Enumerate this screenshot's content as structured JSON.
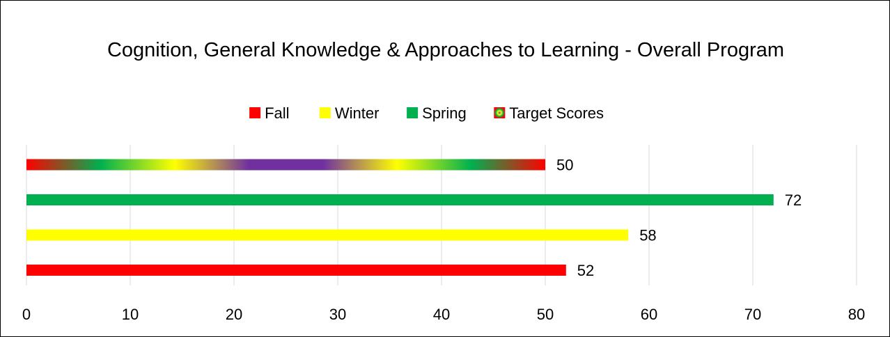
{
  "chart_data": {
    "type": "bar",
    "orientation": "horizontal",
    "title": "Cognition, General Knowledge & Approaches to Learning - Overall Program",
    "series": [
      {
        "name": "Fall",
        "color": "#ff0000",
        "values": [
          52
        ]
      },
      {
        "name": "Winter",
        "color": "#ffff00",
        "values": [
          58
        ]
      },
      {
        "name": "Spring",
        "color": "#00b050",
        "values": [
          72
        ]
      },
      {
        "name": "Target Scores",
        "color": [
          "#ff0000",
          "#00b050",
          "#ffff00",
          "#7030a0",
          "#7030a0",
          "#ffff00",
          "#00b050",
          "#ff0000"
        ],
        "values": [
          50
        ]
      }
    ],
    "xlim": [
      0,
      80
    ],
    "xticks": [
      0,
      10,
      20,
      30,
      40,
      50,
      60,
      70,
      80
    ],
    "grid": true,
    "legend": "top"
  }
}
